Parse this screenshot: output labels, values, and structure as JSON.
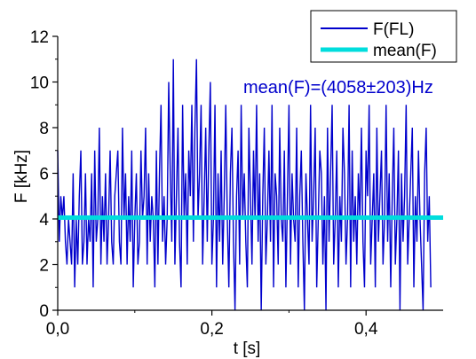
{
  "chart_data": {
    "type": "line",
    "xlabel": "t [s]",
    "ylabel": "F [kHz]",
    "xlim": [
      0,
      0.5
    ],
    "ylim": [
      0,
      12
    ],
    "x_ticks": [
      0,
      0.2,
      0.4
    ],
    "x_tick_labels": [
      "0,0",
      "0,2",
      "0,4"
    ],
    "y_ticks": [
      0,
      2,
      4,
      6,
      8,
      10,
      12
    ],
    "y_tick_labels": [
      "0",
      "2",
      "4",
      "6",
      "8",
      "10",
      "12"
    ],
    "grid": false,
    "legend_position": "top-right",
    "annotation": "mean(F)=(4058±203)Hz",
    "series": [
      {
        "name": "F(FL)",
        "color": "#0000cc",
        "x_start": 0,
        "x_step": 0.002,
        "values": [
          7,
          3,
          5,
          4,
          5,
          3,
          2,
          4,
          3,
          2,
          6,
          1,
          4,
          2,
          5,
          7,
          2,
          3,
          6,
          2,
          4,
          3,
          6,
          1,
          7,
          3,
          4,
          8,
          2,
          5,
          3,
          6,
          2,
          4,
          7,
          3,
          2,
          5,
          6,
          7,
          3,
          2,
          8,
          4,
          6,
          2,
          5,
          3,
          7,
          1,
          4,
          6,
          2,
          3,
          7,
          4,
          5,
          8,
          2,
          6,
          3,
          5,
          4,
          1,
          7,
          2,
          6,
          9,
          3,
          5,
          2,
          4,
          10,
          6,
          3,
          11,
          2,
          5,
          8,
          3,
          1,
          9,
          4,
          6,
          2,
          7,
          5,
          9,
          3,
          8,
          11,
          4,
          6,
          9,
          2,
          5,
          8,
          3,
          7,
          10,
          2,
          4,
          9,
          1,
          6,
          3,
          7,
          2,
          5,
          9,
          4,
          1,
          6,
          8,
          3,
          0,
          5,
          7,
          2,
          9,
          4,
          6,
          3,
          1,
          8,
          5,
          2,
          7,
          4,
          9,
          3,
          6,
          0,
          5,
          8,
          2,
          4,
          7,
          3,
          9,
          1,
          6,
          5,
          2,
          8,
          4,
          3,
          7,
          1,
          5,
          9,
          2,
          6,
          4,
          3,
          8,
          1,
          5,
          7,
          3,
          0,
          6,
          4,
          2,
          9,
          3,
          5,
          8,
          1,
          4,
          7,
          6,
          2,
          5,
          0,
          8,
          3,
          6,
          9,
          2,
          4,
          7,
          1,
          5,
          3,
          8,
          6,
          2,
          4,
          9,
          1,
          7,
          3,
          5,
          2,
          6,
          4,
          8,
          3,
          1,
          7,
          5,
          9,
          2,
          4,
          6,
          1,
          8,
          3,
          5,
          7,
          2,
          4,
          9,
          3,
          6,
          1,
          5,
          8,
          2,
          4,
          7,
          0,
          6,
          3,
          5,
          9,
          2,
          4,
          6,
          8,
          1,
          5,
          3,
          7,
          4,
          2,
          0,
          6,
          8,
          3,
          5,
          1
        ]
      },
      {
        "name": "mean(F)",
        "color": "#00dddd",
        "constant": 4.058
      }
    ]
  }
}
